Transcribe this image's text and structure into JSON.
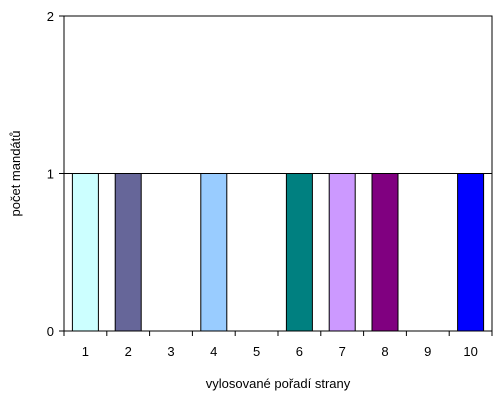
{
  "chart_data": {
    "type": "bar",
    "categories": [
      "1",
      "2",
      "3",
      "4",
      "5",
      "6",
      "7",
      "8",
      "9",
      "10"
    ],
    "values": [
      1,
      1,
      0,
      1,
      0,
      1,
      1,
      1,
      0,
      1
    ],
    "bar_colors": [
      "#CCFFFF",
      "#666699",
      "#FFFFFF",
      "#99CCFF",
      "#FFFFFF",
      "#008080",
      "#CC99FF",
      "#800080",
      "#FFFFFF",
      "#0000FF"
    ],
    "xlabel": "vylosované pořadí strany",
    "ylabel": "počet mandátů",
    "ylim": [
      0,
      2
    ],
    "yticks": [
      "0",
      "1",
      "2"
    ],
    "grid": "horizontal major gridlines"
  }
}
